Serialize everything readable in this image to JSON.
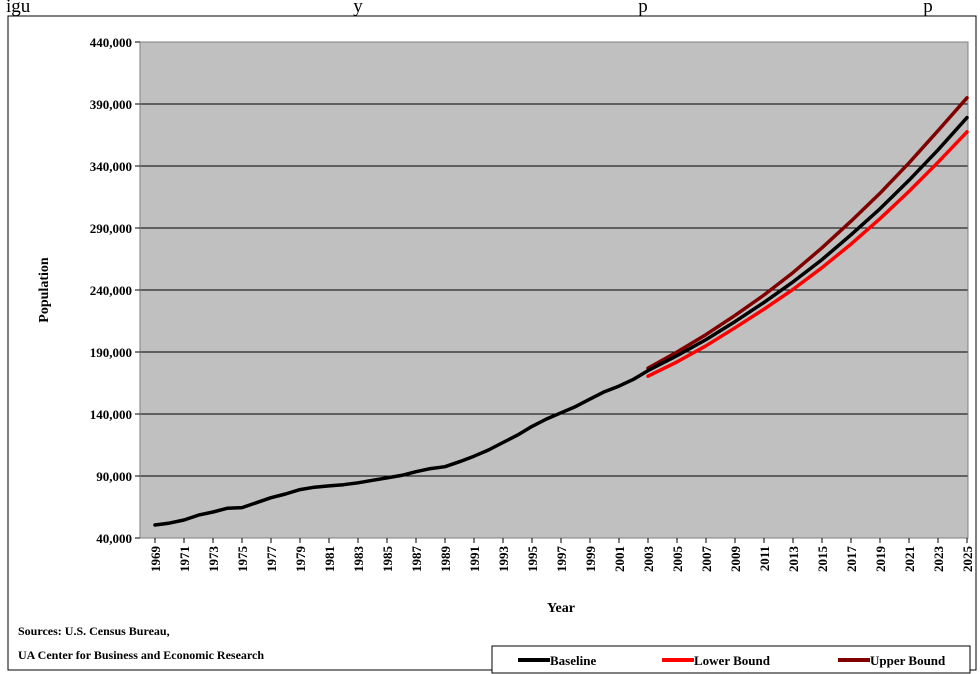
{
  "caption": "igu                                                                    y                                                          p                                                          p                                       y",
  "sources": {
    "line1": "Sources: U.S. Census Bureau,",
    "line2": "UA Center for Business and Economic Research"
  },
  "chart_data": {
    "type": "line",
    "xlabel": "Year",
    "ylabel": "Population",
    "ylim": [
      40000,
      440000
    ],
    "yticks": [
      40000,
      90000,
      140000,
      190000,
      240000,
      290000,
      340000,
      390000,
      440000
    ],
    "ytick_labels": [
      "40,000",
      "90,000",
      "140,000",
      "190,000",
      "240,000",
      "290,000",
      "340,000",
      "390,000",
      "440,000"
    ],
    "xlim": [
      1969,
      2025
    ],
    "xticks": [
      1969,
      1971,
      1973,
      1975,
      1977,
      1979,
      1981,
      1983,
      1985,
      1987,
      1989,
      1991,
      1993,
      1995,
      1997,
      1999,
      2001,
      2003,
      2005,
      2007,
      2009,
      2011,
      2013,
      2015,
      2017,
      2019,
      2021,
      2023,
      2025
    ],
    "grid": true,
    "legend_position": "bottom-right",
    "background": "#c0c0c0",
    "series": [
      {
        "name": "Baseline",
        "color": "#000000",
        "x": [
          1969,
          1970,
          1971,
          1972,
          1973,
          1974,
          1975,
          1976,
          1977,
          1978,
          1979,
          1980,
          1981,
          1982,
          1983,
          1984,
          1985,
          1986,
          1987,
          1988,
          1989,
          1990,
          1991,
          1992,
          1993,
          1994,
          1995,
          1996,
          1997,
          1998,
          1999,
          2000,
          2001,
          2002,
          2003,
          2005,
          2007,
          2009,
          2011,
          2013,
          2015,
          2017,
          2019,
          2021,
          2023,
          2025
        ],
        "values": [
          50500,
          52000,
          54500,
          58500,
          61000,
          64000,
          64500,
          68500,
          72500,
          75500,
          79000,
          81000,
          82000,
          83000,
          84500,
          86500,
          88500,
          90500,
          93500,
          96000,
          97500,
          101500,
          106000,
          111000,
          117000,
          123000,
          130000,
          136000,
          141000,
          146000,
          152000,
          158000,
          162500,
          168000,
          175000,
          187000,
          200000,
          214500,
          230000,
          246500,
          264500,
          284500,
          305500,
          328500,
          353000,
          379000
        ]
      },
      {
        "name": "Lower Bound",
        "color": "#ff0000",
        "x": [
          2003,
          2005,
          2007,
          2009,
          2011,
          2013,
          2015,
          2017,
          2019,
          2021,
          2023,
          2025
        ],
        "values": [
          170500,
          182000,
          195000,
          209500,
          224500,
          240500,
          258000,
          277000,
          297500,
          319500,
          343000,
          367500
        ]
      },
      {
        "name": "Upper Bound",
        "color": "#800000",
        "x": [
          2003,
          2005,
          2007,
          2009,
          2011,
          2013,
          2015,
          2017,
          2019,
          2021,
          2023,
          2025
        ],
        "values": [
          177000,
          190000,
          204000,
          219500,
          236000,
          254000,
          274000,
          295500,
          318000,
          342500,
          368500,
          395000
        ]
      }
    ]
  }
}
